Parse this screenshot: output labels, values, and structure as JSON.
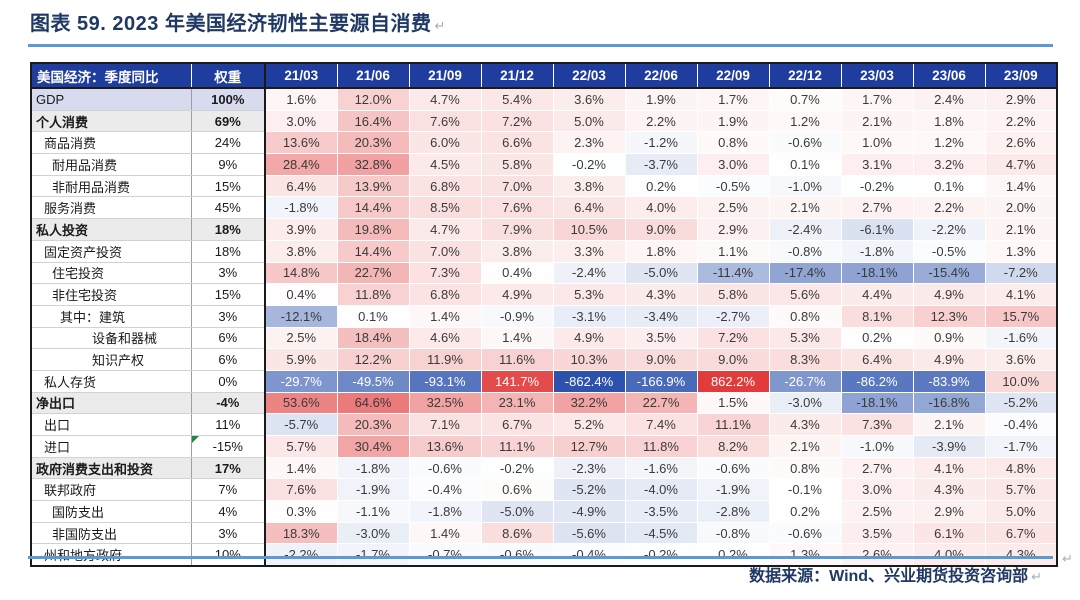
{
  "chart_data": {
    "type": "table",
    "title": "图表 59. 2023 年美国经济韧性主要源自消费",
    "source": "数据来源：Wind、兴业期货投资咨询部",
    "columns": {
      "label": "美国经济：季度同比",
      "weight": "权重",
      "quarters": [
        "21/03",
        "21/06",
        "21/09",
        "21/12",
        "22/03",
        "22/06",
        "22/09",
        "22/12",
        "23/03",
        "23/06",
        "23/09"
      ]
    },
    "value_format": "percent_one_decimal",
    "rows": [
      {
        "label": "GDP",
        "weight": "100%",
        "style": "gdp",
        "indent": 0,
        "values": [
          1.6,
          12.0,
          4.7,
          5.4,
          3.6,
          1.9,
          1.7,
          0.7,
          1.7,
          2.4,
          2.9
        ]
      },
      {
        "label": "个人消费",
        "weight": "69%",
        "style": "section",
        "indent": 0,
        "values": [
          3.0,
          16.4,
          7.6,
          7.2,
          5.0,
          2.2,
          1.9,
          1.2,
          2.1,
          1.8,
          2.2
        ]
      },
      {
        "label": "商品消费",
        "weight": "24%",
        "style": "normal",
        "indent": 1,
        "values": [
          13.6,
          20.3,
          6.0,
          6.6,
          2.3,
          -1.2,
          0.8,
          -0.6,
          1.0,
          1.2,
          2.6
        ]
      },
      {
        "label": "耐用品消费",
        "weight": "9%",
        "style": "normal",
        "indent": 2,
        "values": [
          28.4,
          32.8,
          4.5,
          5.8,
          -0.2,
          -3.7,
          3.0,
          0.1,
          3.1,
          3.2,
          4.7
        ]
      },
      {
        "label": "非耐用品消费",
        "weight": "15%",
        "style": "normal",
        "indent": 2,
        "values": [
          6.4,
          13.9,
          6.8,
          7.0,
          3.8,
          0.2,
          -0.5,
          -1.0,
          -0.2,
          0.1,
          1.4
        ]
      },
      {
        "label": "服务消费",
        "weight": "45%",
        "style": "normal",
        "indent": 1,
        "values": [
          -1.8,
          14.4,
          8.5,
          7.6,
          6.4,
          4.0,
          2.5,
          2.1,
          2.7,
          2.2,
          2.0
        ]
      },
      {
        "label": "私人投资",
        "weight": "18%",
        "style": "section",
        "indent": 0,
        "values": [
          3.9,
          19.8,
          4.7,
          7.9,
          10.5,
          9.0,
          2.9,
          -2.4,
          -6.1,
          -2.2,
          2.1
        ]
      },
      {
        "label": "固定资产投资",
        "weight": "18%",
        "style": "normal",
        "indent": 1,
        "values": [
          3.8,
          14.4,
          7.0,
          3.8,
          3.3,
          1.8,
          1.1,
          -0.8,
          -1.8,
          -0.5,
          1.3
        ]
      },
      {
        "label": "住宅投资",
        "weight": "3%",
        "style": "normal",
        "indent": 2,
        "values": [
          14.8,
          22.7,
          7.3,
          0.4,
          -2.4,
          -5.0,
          -11.4,
          -17.4,
          -18.1,
          -15.4,
          -7.2
        ]
      },
      {
        "label": "非住宅投资",
        "weight": "15%",
        "style": "normal",
        "indent": 2,
        "values": [
          0.4,
          11.8,
          6.8,
          4.9,
          5.3,
          4.3,
          5.8,
          5.6,
          4.4,
          4.9,
          4.1
        ]
      },
      {
        "label": "其中：建筑",
        "weight": "3%",
        "style": "normal",
        "indent": 3,
        "values": [
          -12.1,
          0.1,
          1.4,
          -0.9,
          -3.1,
          -3.4,
          -2.7,
          0.8,
          8.1,
          12.3,
          15.7
        ]
      },
      {
        "label": "设备和器械",
        "weight": "6%",
        "style": "normal",
        "indent": 7,
        "values": [
          2.5,
          18.4,
          4.6,
          1.4,
          4.9,
          3.5,
          7.2,
          5.3,
          0.2,
          0.9,
          -1.6
        ]
      },
      {
        "label": "知识产权",
        "weight": "6%",
        "style": "normal",
        "indent": 7,
        "values": [
          5.9,
          12.2,
          11.9,
          11.6,
          10.3,
          9.0,
          9.0,
          8.3,
          6.4,
          4.9,
          3.6
        ]
      },
      {
        "label": "私人存货",
        "weight": "0%",
        "style": "normal",
        "indent": 1,
        "values": [
          -29.7,
          -49.5,
          -93.1,
          141.7,
          -862.4,
          -166.9,
          862.2,
          -26.7,
          -86.2,
          -83.9,
          10.0
        ]
      },
      {
        "label": "净出口",
        "weight": "-4%",
        "style": "section",
        "indent": 0,
        "values": [
          53.6,
          64.6,
          32.5,
          23.1,
          32.2,
          22.7,
          1.5,
          -3.0,
          -18.1,
          -16.8,
          -5.2
        ]
      },
      {
        "label": "出口",
        "weight": "11%",
        "style": "normal",
        "indent": 1,
        "values": [
          -5.7,
          20.3,
          7.1,
          6.7,
          5.2,
          7.4,
          11.1,
          4.3,
          7.3,
          2.1,
          -0.4
        ]
      },
      {
        "label": "进口",
        "weight": "-15%",
        "style": "normal",
        "indent": 1,
        "note": true,
        "values": [
          5.7,
          30.4,
          13.6,
          11.1,
          12.7,
          11.8,
          8.2,
          2.1,
          -1.0,
          -3.9,
          -1.7
        ]
      },
      {
        "label": "政府消费支出和投资",
        "weight": "17%",
        "style": "section",
        "indent": 0,
        "values": [
          1.4,
          -1.8,
          -0.6,
          -0.2,
          -2.3,
          -1.6,
          -0.6,
          0.8,
          2.7,
          4.1,
          4.8
        ]
      },
      {
        "label": "联邦政府",
        "weight": "7%",
        "style": "normal",
        "indent": 1,
        "values": [
          7.6,
          -1.9,
          -0.4,
          0.6,
          -5.2,
          -4.0,
          -1.9,
          -0.1,
          3.0,
          4.3,
          5.7
        ]
      },
      {
        "label": "国防支出",
        "weight": "4%",
        "style": "normal",
        "indent": 2,
        "values": [
          0.3,
          -1.1,
          -1.8,
          -5.0,
          -4.9,
          -3.5,
          -2.8,
          0.2,
          2.5,
          2.9,
          5.0
        ]
      },
      {
        "label": "非国防支出",
        "weight": "3%",
        "style": "normal",
        "indent": 2,
        "values": [
          18.3,
          -3.0,
          1.4,
          8.6,
          -5.6,
          -4.5,
          -0.8,
          -0.6,
          3.5,
          6.1,
          6.7
        ]
      },
      {
        "label": "州和地方政府",
        "weight": "10%",
        "style": "normal",
        "indent": 1,
        "values": [
          -2.2,
          -1.7,
          -0.7,
          -0.6,
          -0.4,
          -0.2,
          0.2,
          1.3,
          2.6,
          4.0,
          4.3
        ]
      }
    ],
    "color_scale": {
      "negative_full": "#2B51AD",
      "midpoint": "#FFFFFF",
      "positive_full": "#E23B3B"
    }
  },
  "marks": {
    "pilcrow": "↵"
  },
  "colors": {
    "title_text": "#1F3864",
    "divider": "#5B9BD5",
    "header_bg": "#1E3D9E",
    "header_text": "#FFFFFF",
    "gdp_row_bg": "#D8DBEE",
    "section_row_bg": "#EBEBEB",
    "cell_text": "#3A3A3A",
    "table_border": "#1A1A1A",
    "note_marker": "#1E8A3C",
    "paragraph_mark": "#A3B0C2"
  }
}
